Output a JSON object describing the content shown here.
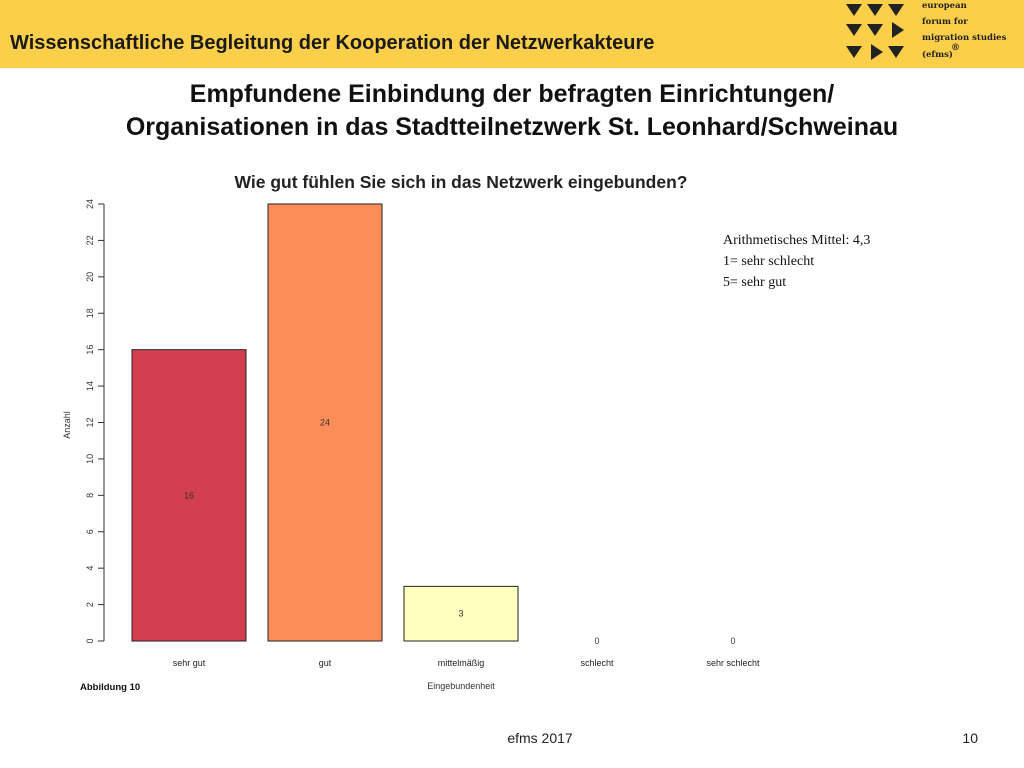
{
  "header": {
    "title": "Wissenschaftliche Begleitung der Kooperation der Netzwerkakteure"
  },
  "logo": {
    "lines": [
      "european",
      "forum for",
      "migration studies",
      "(efms)"
    ],
    "mark": "®",
    "color": "#222222"
  },
  "slide": {
    "title_line1": "Empfundene Einbindung der befragten Einrichtungen/",
    "title_line2": "Organisationen in das Stadtteilnetzwerk St. Leonhard/Schweinau"
  },
  "note": {
    "lines": [
      "Arithmetisches Mittel: 4,3",
      "1= sehr schlecht",
      "5= sehr gut"
    ]
  },
  "figure_label": "Abbildung 10",
  "footer": {
    "center": "efms 2017",
    "page": "10"
  },
  "colors": {
    "header_bg": "#fccf4b"
  },
  "chart_data": {
    "type": "bar",
    "title": "Wie gut fühlen Sie sich in das Netzwerk eingebunden?",
    "xlabel": "Eingebundenheit",
    "ylabel": "Anzahl",
    "categories": [
      "sehr gut",
      "gut",
      "mittelmäßig",
      "schlecht",
      "sehr schlecht"
    ],
    "values": [
      16,
      24,
      3,
      0,
      0
    ],
    "data_labels": [
      "16",
      "24",
      "3",
      "0",
      "0"
    ],
    "colors": [
      "#d43f50",
      "#fc8d59",
      "#ffffbf",
      "#ffffff",
      "#ffffff"
    ],
    "ylim": [
      0,
      24
    ],
    "yticks": [
      0,
      2,
      4,
      6,
      8,
      10,
      12,
      14,
      16,
      18,
      20,
      22,
      24
    ],
    "grid": false
  }
}
